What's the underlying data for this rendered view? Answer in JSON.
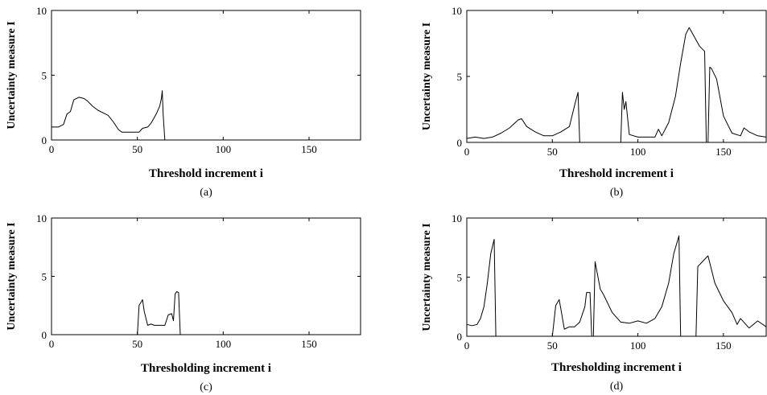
{
  "chart_data": [
    {
      "type": "line",
      "caption": "(a)",
      "xlabel": "Threshold increment i",
      "ylabel": "Uncertainty measure I",
      "xlim": [
        0,
        180
      ],
      "ylim": [
        0,
        10
      ],
      "xticks": [
        "0",
        "50",
        "100",
        "150"
      ],
      "yticks": [
        "0",
        "5",
        "10"
      ],
      "series": [
        {
          "x": [
            0,
            4,
            7,
            9,
            11,
            13,
            16,
            19,
            21,
            24,
            27,
            30,
            33,
            36,
            39,
            41,
            43,
            45,
            48,
            51,
            53,
            56,
            58,
            61,
            63,
            64,
            64.5,
            65,
            66,
            180
          ],
          "y": [
            1,
            1,
            1.2,
            2,
            2.2,
            3.1,
            3.3,
            3.2,
            3,
            2.6,
            2.3,
            2.1,
            1.9,
            1.4,
            0.8,
            0.6,
            0.6,
            0.6,
            0.6,
            0.6,
            0.9,
            1,
            1.3,
            2,
            2.6,
            3.2,
            3.8,
            2,
            0,
            0
          ]
        }
      ]
    },
    {
      "type": "line",
      "caption": "(b)",
      "xlabel": "Threshold increment i",
      "ylabel": "Uncertainty measure I",
      "xlim": [
        0,
        175
      ],
      "ylim": [
        0,
        10
      ],
      "xticks": [
        "0",
        "50",
        "100",
        "150"
      ],
      "yticks": [
        "0",
        "5",
        "10"
      ],
      "series": [
        {
          "x": [
            0,
            5,
            10,
            15,
            20,
            25,
            30,
            32,
            35,
            40,
            45,
            50,
            55,
            60,
            63,
            65,
            66,
            90,
            91,
            92,
            93,
            95,
            100,
            105,
            110,
            112,
            114,
            118,
            122,
            125,
            128,
            130,
            133,
            136,
            139,
            140,
            141,
            142,
            143,
            146,
            150,
            155,
            160,
            162,
            165,
            170,
            175
          ],
          "y": [
            0.3,
            0.4,
            0.3,
            0.4,
            0.7,
            1.1,
            1.7,
            1.8,
            1.2,
            0.8,
            0.5,
            0.5,
            0.8,
            1.2,
            2.8,
            3.8,
            0,
            0,
            3.8,
            2.5,
            3.1,
            0.6,
            0.4,
            0.4,
            0.4,
            1,
            0.5,
            1.5,
            3.5,
            6,
            8.2,
            8.7,
            8,
            7.3,
            6.9,
            0,
            0,
            5.7,
            5.6,
            4.8,
            2,
            0.7,
            0.5,
            1.1,
            0.8,
            0.5,
            0.4
          ]
        }
      ]
    },
    {
      "type": "line",
      "caption": "(c)",
      "xlabel": "Thresholding increment i",
      "ylabel": "Uncertainty measure I",
      "xlim": [
        0,
        180
      ],
      "ylim": [
        0,
        10
      ],
      "xticks": [
        "0",
        "50",
        "100",
        "150"
      ],
      "yticks": [
        "0",
        "5",
        "10"
      ],
      "series": [
        {
          "x": [
            0,
            50,
            51,
            53,
            54,
            56,
            58,
            60,
            63,
            66,
            68,
            70,
            71,
            72,
            73,
            74,
            75,
            180
          ],
          "y": [
            0,
            0,
            2.5,
            3,
            2,
            0.8,
            0.9,
            0.8,
            0.8,
            0.8,
            1.7,
            1.8,
            1.2,
            3.5,
            3.7,
            3.6,
            0,
            0
          ]
        }
      ]
    },
    {
      "type": "line",
      "caption": "(d)",
      "xlabel": "Thresholding increment i",
      "ylabel": "Uncertainty measure I",
      "xlim": [
        0,
        175
      ],
      "ylim": [
        0,
        10
      ],
      "xticks": [
        "0",
        "50",
        "100",
        "150"
      ],
      "yticks": [
        "0",
        "5",
        "10"
      ],
      "series": [
        {
          "x": [
            0,
            3,
            6,
            8,
            10,
            12,
            14,
            16,
            17,
            50,
            52,
            54,
            55,
            57,
            60,
            63,
            66,
            69,
            70,
            72,
            73,
            74,
            75,
            76,
            78,
            80,
            85,
            90,
            95,
            100,
            105,
            110,
            114,
            118,
            121,
            124,
            125,
            134,
            135,
            137,
            139,
            141,
            145,
            150,
            155,
            158,
            160,
            165,
            170,
            175
          ],
          "y": [
            1,
            0.9,
            1,
            1.5,
            2.5,
            4.5,
            7,
            8.2,
            0,
            0,
            2.6,
            3.1,
            2.3,
            0.6,
            0.8,
            0.8,
            1.2,
            2.5,
            3.7,
            3.7,
            0,
            0,
            6.3,
            5.5,
            4,
            3.5,
            2,
            1.2,
            1.1,
            1.3,
            1.1,
            1.5,
            2.5,
            4.5,
            7,
            8.5,
            0,
            0,
            5.9,
            6.2,
            6.5,
            6.8,
            4.5,
            3,
            2,
            1,
            1.5,
            0.7,
            1.3,
            0.8
          ]
        }
      ]
    }
  ]
}
